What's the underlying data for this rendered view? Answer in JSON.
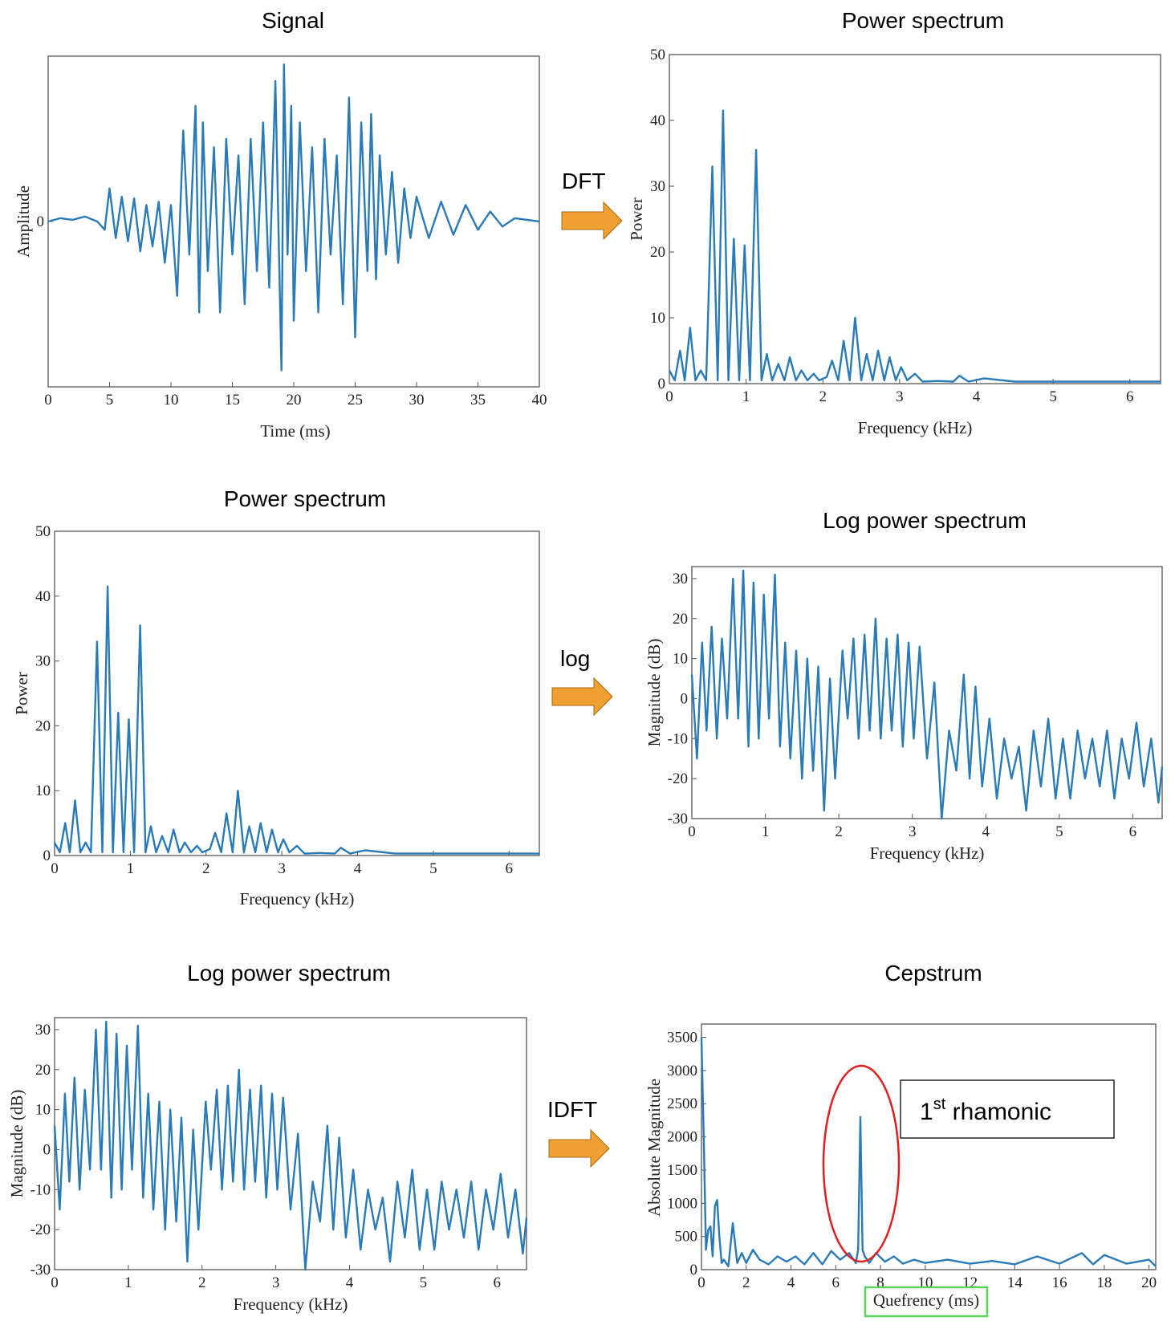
{
  "arrows": [
    {
      "label": "DFT",
      "color": "#f0a030"
    },
    {
      "label": "log",
      "color": "#f0a030"
    },
    {
      "label": "IDFT",
      "color": "#f0a030"
    }
  ],
  "annotation": {
    "text_main": "1",
    "text_sup": "st",
    "text_rest": " rhamonic",
    "ellipse_color": "#e02020",
    "xlabel_box_color": "#5ad35a"
  },
  "series_color": "#2a7ab8",
  "chart_data": [
    {
      "id": "signal",
      "type": "line",
      "title": "Signal",
      "xlabel": "Time (ms)",
      "ylabel": "Amplitude",
      "xlim": [
        0,
        40
      ],
      "ylim": [
        -1.0,
        1.0
      ],
      "xticks": [
        0,
        5,
        10,
        15,
        20,
        25,
        30,
        35,
        40
      ],
      "yticks": [
        0
      ],
      "x": [
        0,
        1,
        2,
        3,
        4,
        4.6,
        5,
        5.5,
        6,
        6.5,
        7,
        7.5,
        8,
        8.5,
        9,
        9.5,
        10,
        10.5,
        11,
        11.5,
        12,
        12.3,
        12.6,
        13,
        13.5,
        14,
        14.5,
        15,
        15.5,
        16,
        16.5,
        17,
        17.5,
        18,
        18.5,
        19,
        19.2,
        19.5,
        19.8,
        20,
        20.5,
        21,
        21.5,
        22,
        22.5,
        23,
        23.5,
        24,
        24.5,
        25,
        25.5,
        26,
        26.3,
        26.7,
        27,
        27.5,
        28,
        28.5,
        29,
        29.5,
        30,
        31,
        32,
        33,
        34,
        35,
        36,
        37,
        38,
        39,
        40
      ],
      "y": [
        0,
        0.02,
        0.01,
        0.03,
        0,
        -0.05,
        0.2,
        -0.1,
        0.15,
        -0.12,
        0.14,
        -0.18,
        0.1,
        -0.15,
        0.12,
        -0.25,
        0.1,
        -0.45,
        0.55,
        -0.2,
        0.7,
        -0.55,
        0.6,
        -0.3,
        0.45,
        -0.55,
        0.5,
        -0.2,
        0.4,
        -0.5,
        0.5,
        -0.3,
        0.6,
        -0.4,
        0.85,
        -0.9,
        0.95,
        -0.2,
        0.7,
        -0.6,
        0.6,
        -0.3,
        0.45,
        -0.55,
        0.5,
        -0.2,
        0.4,
        -0.5,
        0.75,
        -0.7,
        0.6,
        -0.3,
        0.65,
        -0.35,
        0.4,
        -0.2,
        0.3,
        -0.25,
        0.2,
        -0.1,
        0.15,
        -0.1,
        0.12,
        -0.08,
        0.1,
        -0.05,
        0.06,
        -0.03,
        0.02,
        0.01,
        0
      ]
    },
    {
      "id": "power1",
      "type": "line",
      "title": "Power spectrum",
      "xlabel": "Frequency (kHz)",
      "ylabel": "Power",
      "xlim": [
        0,
        6.4
      ],
      "ylim": [
        0,
        50
      ],
      "xticks": [
        0,
        1,
        2,
        3,
        4,
        5,
        6
      ],
      "yticks": [
        0,
        10,
        20,
        30,
        40,
        50
      ],
      "x": [
        0,
        0.07,
        0.14,
        0.2,
        0.27,
        0.34,
        0.41,
        0.48,
        0.56,
        0.63,
        0.7,
        0.77,
        0.84,
        0.91,
        0.98,
        1.05,
        1.13,
        1.2,
        1.27,
        1.34,
        1.42,
        1.5,
        1.57,
        1.65,
        1.72,
        1.8,
        1.88,
        1.95,
        2.05,
        2.12,
        2.2,
        2.27,
        2.35,
        2.42,
        2.5,
        2.57,
        2.65,
        2.72,
        2.8,
        2.87,
        2.95,
        3.02,
        3.1,
        3.2,
        3.3,
        3.5,
        3.7,
        3.78,
        3.9,
        4.1,
        4.5,
        5.0,
        5.5,
        6.0,
        6.4
      ],
      "y": [
        2,
        0.5,
        5,
        0.5,
        8.5,
        0.5,
        2,
        0.5,
        33,
        0.5,
        41.5,
        0.5,
        22,
        0.5,
        21,
        0.5,
        35.5,
        0.5,
        4.5,
        0.5,
        3,
        0.5,
        4,
        0.5,
        2,
        0.5,
        1.5,
        0.5,
        1,
        3.5,
        0.5,
        6.5,
        0.5,
        10,
        0.5,
        4.5,
        0.5,
        5,
        0.5,
        4,
        0.5,
        2.5,
        0.5,
        1.5,
        0.3,
        0.4,
        0.3,
        1.2,
        0.3,
        0.8,
        0.3,
        0.3,
        0.3,
        0.3,
        0.3
      ]
    },
    {
      "id": "power2",
      "type": "line",
      "title": "Power spectrum",
      "xlabel": "Frequency (kHz)",
      "ylabel": "Power",
      "xlim": [
        0,
        6.4
      ],
      "ylim": [
        0,
        50
      ],
      "xticks": [
        0,
        1,
        2,
        3,
        4,
        5,
        6
      ],
      "yticks": [
        0,
        10,
        20,
        30,
        40,
        50
      ],
      "x": [
        0,
        0.07,
        0.14,
        0.2,
        0.27,
        0.34,
        0.41,
        0.48,
        0.56,
        0.63,
        0.7,
        0.77,
        0.84,
        0.91,
        0.98,
        1.05,
        1.13,
        1.2,
        1.27,
        1.34,
        1.42,
        1.5,
        1.57,
        1.65,
        1.72,
        1.8,
        1.88,
        1.95,
        2.05,
        2.12,
        2.2,
        2.27,
        2.35,
        2.42,
        2.5,
        2.57,
        2.65,
        2.72,
        2.8,
        2.87,
        2.95,
        3.02,
        3.1,
        3.2,
        3.3,
        3.5,
        3.7,
        3.78,
        3.9,
        4.1,
        4.5,
        5.0,
        5.5,
        6.0,
        6.4
      ],
      "y": [
        2,
        0.5,
        5,
        0.5,
        8.5,
        0.5,
        2,
        0.5,
        33,
        0.5,
        41.5,
        0.5,
        22,
        0.5,
        21,
        0.5,
        35.5,
        0.5,
        4.5,
        0.5,
        3,
        0.5,
        4,
        0.5,
        2,
        0.5,
        1.5,
        0.5,
        1,
        3.5,
        0.5,
        6.5,
        0.5,
        10,
        0.5,
        4.5,
        0.5,
        5,
        0.5,
        4,
        0.5,
        2.5,
        0.5,
        1.5,
        0.3,
        0.4,
        0.3,
        1.2,
        0.3,
        0.8,
        0.3,
        0.3,
        0.3,
        0.3,
        0.3
      ]
    },
    {
      "id": "logpower1",
      "type": "line",
      "title": "Log power spectrum",
      "xlabel": "Frequency (kHz)",
      "ylabel": "Magnitude (dB)",
      "xlim": [
        0,
        6.4
      ],
      "ylim": [
        -30,
        33
      ],
      "xticks": [
        0,
        1,
        2,
        3,
        4,
        5,
        6
      ],
      "yticks": [
        -30,
        -20,
        -10,
        0,
        10,
        20,
        30
      ],
      "x": [
        0,
        0.07,
        0.14,
        0.2,
        0.27,
        0.34,
        0.41,
        0.48,
        0.56,
        0.63,
        0.7,
        0.77,
        0.84,
        0.91,
        0.98,
        1.05,
        1.13,
        1.2,
        1.27,
        1.34,
        1.42,
        1.5,
        1.57,
        1.65,
        1.72,
        1.8,
        1.88,
        1.95,
        2.05,
        2.12,
        2.2,
        2.27,
        2.35,
        2.42,
        2.5,
        2.57,
        2.65,
        2.72,
        2.8,
        2.87,
        2.95,
        3.02,
        3.1,
        3.2,
        3.3,
        3.4,
        3.5,
        3.6,
        3.7,
        3.78,
        3.86,
        3.95,
        4.05,
        4.15,
        4.25,
        4.35,
        4.45,
        4.55,
        4.65,
        4.75,
        4.85,
        4.95,
        5.05,
        5.15,
        5.25,
        5.35,
        5.45,
        5.55,
        5.65,
        5.75,
        5.85,
        5.95,
        6.05,
        6.15,
        6.25,
        6.35,
        6.4
      ],
      "y": [
        6,
        -15,
        14,
        -8,
        18,
        -10,
        15,
        -5,
        30,
        -5,
        32,
        -12,
        29,
        -10,
        26,
        -5,
        31,
        -12,
        14,
        -15,
        12,
        -20,
        10,
        -18,
        8,
        -28,
        5,
        -20,
        12,
        -5,
        15,
        -10,
        16,
        -8,
        20,
        -10,
        15,
        -8,
        16,
        -12,
        14,
        -10,
        13,
        -15,
        4,
        -30,
        -8,
        -18,
        6,
        -20,
        3,
        -22,
        -5,
        -25,
        -10,
        -20,
        -12,
        -28,
        -8,
        -22,
        -5,
        -25,
        -10,
        -25,
        -8,
        -20,
        -10,
        -22,
        -8,
        -25,
        -10,
        -20,
        -6,
        -22,
        -10,
        -26,
        -17
      ]
    },
    {
      "id": "logpower2",
      "type": "line",
      "title": "Log power spectrum",
      "xlabel": "Frequency (kHz)",
      "ylabel": "Magnitude (dB)",
      "xlim": [
        0,
        6.4
      ],
      "ylim": [
        -30,
        33
      ],
      "xticks": [
        0,
        1,
        2,
        3,
        4,
        5,
        6
      ],
      "yticks": [
        -30,
        -20,
        -10,
        0,
        10,
        20,
        30
      ],
      "x": [
        0,
        0.07,
        0.14,
        0.2,
        0.27,
        0.34,
        0.41,
        0.48,
        0.56,
        0.63,
        0.7,
        0.77,
        0.84,
        0.91,
        0.98,
        1.05,
        1.13,
        1.2,
        1.27,
        1.34,
        1.42,
        1.5,
        1.57,
        1.65,
        1.72,
        1.8,
        1.88,
        1.95,
        2.05,
        2.12,
        2.2,
        2.27,
        2.35,
        2.42,
        2.5,
        2.57,
        2.65,
        2.72,
        2.8,
        2.87,
        2.95,
        3.02,
        3.1,
        3.2,
        3.3,
        3.4,
        3.5,
        3.6,
        3.7,
        3.78,
        3.86,
        3.95,
        4.05,
        4.15,
        4.25,
        4.35,
        4.45,
        4.55,
        4.65,
        4.75,
        4.85,
        4.95,
        5.05,
        5.15,
        5.25,
        5.35,
        5.45,
        5.55,
        5.65,
        5.75,
        5.85,
        5.95,
        6.05,
        6.15,
        6.25,
        6.35,
        6.4
      ],
      "y": [
        6,
        -15,
        14,
        -8,
        18,
        -10,
        15,
        -5,
        30,
        -5,
        32,
        -12,
        29,
        -10,
        26,
        -5,
        31,
        -12,
        14,
        -15,
        12,
        -20,
        10,
        -18,
        8,
        -28,
        5,
        -20,
        12,
        -5,
        15,
        -10,
        16,
        -8,
        20,
        -10,
        15,
        -8,
        16,
        -12,
        14,
        -10,
        13,
        -15,
        4,
        -30,
        -8,
        -18,
        6,
        -20,
        3,
        -22,
        -5,
        -25,
        -10,
        -20,
        -12,
        -28,
        -8,
        -22,
        -5,
        -25,
        -10,
        -25,
        -8,
        -20,
        -10,
        -22,
        -8,
        -25,
        -10,
        -20,
        -6,
        -22,
        -10,
        -26,
        -17
      ]
    },
    {
      "id": "cepstrum",
      "type": "line",
      "title": "Cepstrum",
      "xlabel": "Quefrency (ms)",
      "ylabel": "Absolute Magnitude",
      "xlim": [
        0,
        20.3
      ],
      "ylim": [
        0,
        3700
      ],
      "xticks": [
        0,
        2,
        4,
        6,
        8,
        10,
        12,
        14,
        16,
        18,
        20
      ],
      "yticks": [
        0,
        500,
        1000,
        1500,
        2000,
        2500,
        3000,
        3500
      ],
      "x": [
        0,
        0.1,
        0.2,
        0.3,
        0.4,
        0.5,
        0.6,
        0.7,
        0.8,
        0.9,
        1.0,
        1.2,
        1.4,
        1.6,
        1.8,
        2.0,
        2.3,
        2.6,
        3.0,
        3.4,
        3.8,
        4.2,
        4.6,
        5.0,
        5.4,
        5.8,
        6.2,
        6.6,
        6.9,
        7.0,
        7.1,
        7.2,
        7.3,
        7.5,
        7.8,
        8.2,
        8.6,
        9.0,
        9.5,
        10,
        11,
        12,
        13,
        14,
        15,
        16,
        17,
        17.5,
        18,
        19,
        20,
        20.3
      ],
      "y": [
        3500,
        2000,
        300,
        600,
        650,
        200,
        950,
        1050,
        500,
        100,
        150,
        50,
        700,
        100,
        250,
        100,
        300,
        150,
        80,
        200,
        120,
        200,
        80,
        250,
        80,
        280,
        150,
        250,
        100,
        300,
        2300,
        300,
        200,
        100,
        250,
        120,
        200,
        90,
        150,
        100,
        150,
        90,
        130,
        80,
        200,
        90,
        250,
        80,
        220,
        90,
        150,
        50
      ]
    }
  ]
}
